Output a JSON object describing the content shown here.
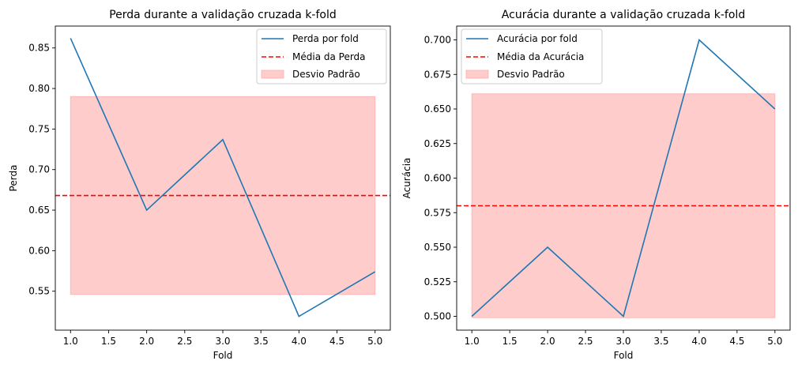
{
  "chart_data": [
    {
      "type": "line",
      "title": "Perda durante a validação cruzada k-fold",
      "xlabel": "Fold",
      "ylabel": "Perda",
      "x": [
        1,
        2,
        3,
        4,
        5
      ],
      "series": [
        {
          "name": "Perda por fold",
          "values": [
            0.862,
            0.65,
            0.737,
            0.519,
            0.574
          ],
          "color": "#1f77b4"
        }
      ],
      "mean": {
        "name": "Média da Perda",
        "value": 0.668,
        "color": "#ff0000"
      },
      "std_band": {
        "name": "Desvio Padrão",
        "low": 0.546,
        "high": 0.79,
        "color": "#ff9999"
      },
      "xlim": [
        0.8,
        5.2
      ],
      "ylim": [
        0.502,
        0.877
      ],
      "xticks": [
        "1.0",
        "1.5",
        "2.0",
        "2.5",
        "3.0",
        "3.5",
        "4.0",
        "4.5",
        "5.0"
      ],
      "yticks": [
        "0.55",
        "0.60",
        "0.65",
        "0.70",
        "0.75",
        "0.80",
        "0.85"
      ],
      "grid": false,
      "legend": "top-right"
    },
    {
      "type": "line",
      "title": "Acurácia durante a validação cruzada k-fold",
      "xlabel": "Fold",
      "ylabel": "Acurácia",
      "x": [
        1,
        2,
        3,
        4,
        5
      ],
      "series": [
        {
          "name": "Acurácia por fold",
          "values": [
            0.5,
            0.55,
            0.5,
            0.7,
            0.65
          ],
          "color": "#1f77b4"
        }
      ],
      "mean": {
        "name": "Média da Acurácia",
        "value": 0.58,
        "color": "#ff0000"
      },
      "std_band": {
        "name": "Desvio Padrão",
        "low": 0.499,
        "high": 0.661,
        "color": "#ff9999"
      },
      "xlim": [
        0.8,
        5.2
      ],
      "ylim": [
        0.49,
        0.71
      ],
      "xticks": [
        "1.0",
        "1.5",
        "2.0",
        "2.5",
        "3.0",
        "3.5",
        "4.0",
        "4.5",
        "5.0"
      ],
      "yticks": [
        "0.500",
        "0.525",
        "0.550",
        "0.575",
        "0.600",
        "0.625",
        "0.650",
        "0.675",
        "0.700"
      ],
      "grid": false,
      "legend": "top-left"
    }
  ]
}
